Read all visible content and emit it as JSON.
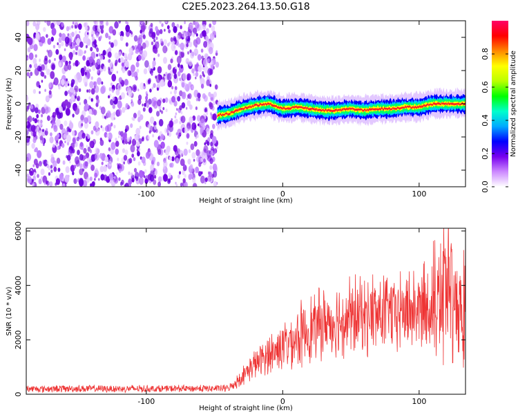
{
  "title": "C2E5.2023.264.13.50.G18",
  "chart_data": [
    {
      "type": "heatmap",
      "xlabel": "Height of straight line (km)",
      "ylabel": "Frequency (Hz)",
      "xlim": [
        -188,
        134
      ],
      "ylim": [
        -50,
        50
      ],
      "xticks": [
        -100,
        0,
        100
      ],
      "yticks": [
        -40,
        -20,
        0,
        20,
        40
      ],
      "colorbar": {
        "label": "Normalized spectral amplitude",
        "range": [
          0,
          1
        ],
        "ticks": [
          0.0,
          0.2,
          0.4,
          0.6,
          0.8
        ],
        "colors": [
          "#ffffff",
          "#cc88ff",
          "#7700ee",
          "#0000ff",
          "#00aaff",
          "#00ffcc",
          "#00ff00",
          "#bbff00",
          "#ffff00",
          "#ff8800",
          "#ff0000",
          "#ff0066"
        ]
      },
      "noise_region_x": [
        -188,
        -48
      ],
      "signal_trace": {
        "x": [
          -48,
          -40,
          -30,
          -20,
          -10,
          0,
          10,
          20,
          30,
          40,
          50,
          60,
          70,
          80,
          90,
          100,
          110,
          120,
          134
        ],
        "y": [
          -7,
          -6,
          -3,
          -1,
          0,
          -3,
          -2,
          -3,
          -4,
          -4,
          -3,
          -4,
          -3,
          -3,
          -2,
          -2,
          0,
          0,
          0
        ]
      }
    },
    {
      "type": "line",
      "xlabel": "Height of straight line (km)",
      "ylabel": "SNR (10 * v/v)",
      "xlim": [
        -188,
        134
      ],
      "ylim": [
        0,
        6100
      ],
      "xticks": [
        -100,
        0,
        100
      ],
      "yticks": [
        0,
        2000,
        4000,
        6000
      ],
      "color": "#ee3333",
      "series": [
        {
          "x": [
            -188,
            -170,
            -150,
            -130,
            -110,
            -90,
            -70,
            -50,
            -40,
            -35,
            -30,
            -25,
            -20,
            -15,
            -10,
            -5,
            0,
            10,
            20,
            30,
            40,
            50,
            60,
            70,
            80,
            90,
            100,
            110,
            115,
            120,
            125,
            130,
            134
          ],
          "y": [
            200,
            200,
            210,
            200,
            205,
            200,
            210,
            210,
            220,
            400,
            650,
            900,
            1100,
            1300,
            1450,
            1600,
            1800,
            2100,
            2400,
            2600,
            2750,
            2850,
            2900,
            2950,
            3000,
            3050,
            3100,
            3200,
            3400,
            3700,
            3300,
            3500,
            3600
          ]
        }
      ]
    }
  ]
}
